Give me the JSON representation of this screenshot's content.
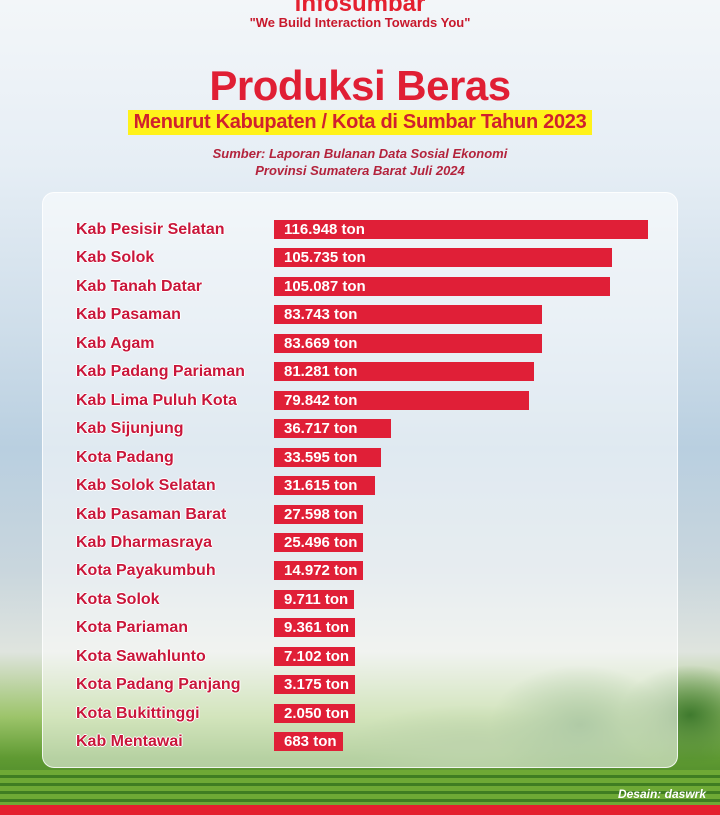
{
  "header": {
    "logo": "infosumbar",
    "tagline": "\"We Build Interaction Towards You\""
  },
  "chart_data": {
    "type": "bar",
    "orientation": "horizontal",
    "title": "Produksi Beras",
    "subtitle": "Menurut Kabupaten / Kota di Sumbar  Tahun 2023",
    "source_line1": "Sumber: Laporan Bulanan Data Sosial Ekonomi",
    "source_line2": "Provinsi Sumatera Barat Juli 2024",
    "bar_color": "#e01f37",
    "label_color": "#c9163a",
    "unit": "ton",
    "categories": [
      "Kab Pesisir Selatan",
      "Kab Solok",
      "Kab Tanah Datar",
      "Kab Pasaman",
      "Kab Agam",
      "Kab Padang Pariaman",
      "Kab Lima Puluh Kota",
      "Kab Sijunjung",
      "Kota Padang",
      "Kab Solok Selatan",
      "Kab Pasaman Barat",
      "Kab Dharmasraya",
      "Kota Payakumbuh",
      "Kota Solok",
      "Kota Pariaman",
      "Kota Sawahlunto",
      "Kota Padang Panjang",
      "Kota Bukittinggi",
      "Kab Mentawai"
    ],
    "values": [
      116948,
      105735,
      105087,
      83743,
      83669,
      81281,
      79842,
      36717,
      33595,
      31615,
      27598,
      25496,
      14972,
      9711,
      9361,
      7102,
      3175,
      2050,
      683
    ],
    "value_labels": [
      "116.948 ton",
      "105.735 ton",
      "105.087 ton",
      "83.743 ton",
      "83.669 ton",
      "81.281 ton",
      "79.842 ton",
      "36.717 ton",
      "33.595 ton",
      "31.615 ton",
      "27.598 ton",
      "25.496  ton",
      "14.972  ton",
      "9.711  ton",
      "9.361  ton",
      "7.102  ton",
      "3.175  ton",
      "2.050 ton",
      "683 ton"
    ]
  },
  "footer": {
    "credit": "Desain: daswrk"
  }
}
